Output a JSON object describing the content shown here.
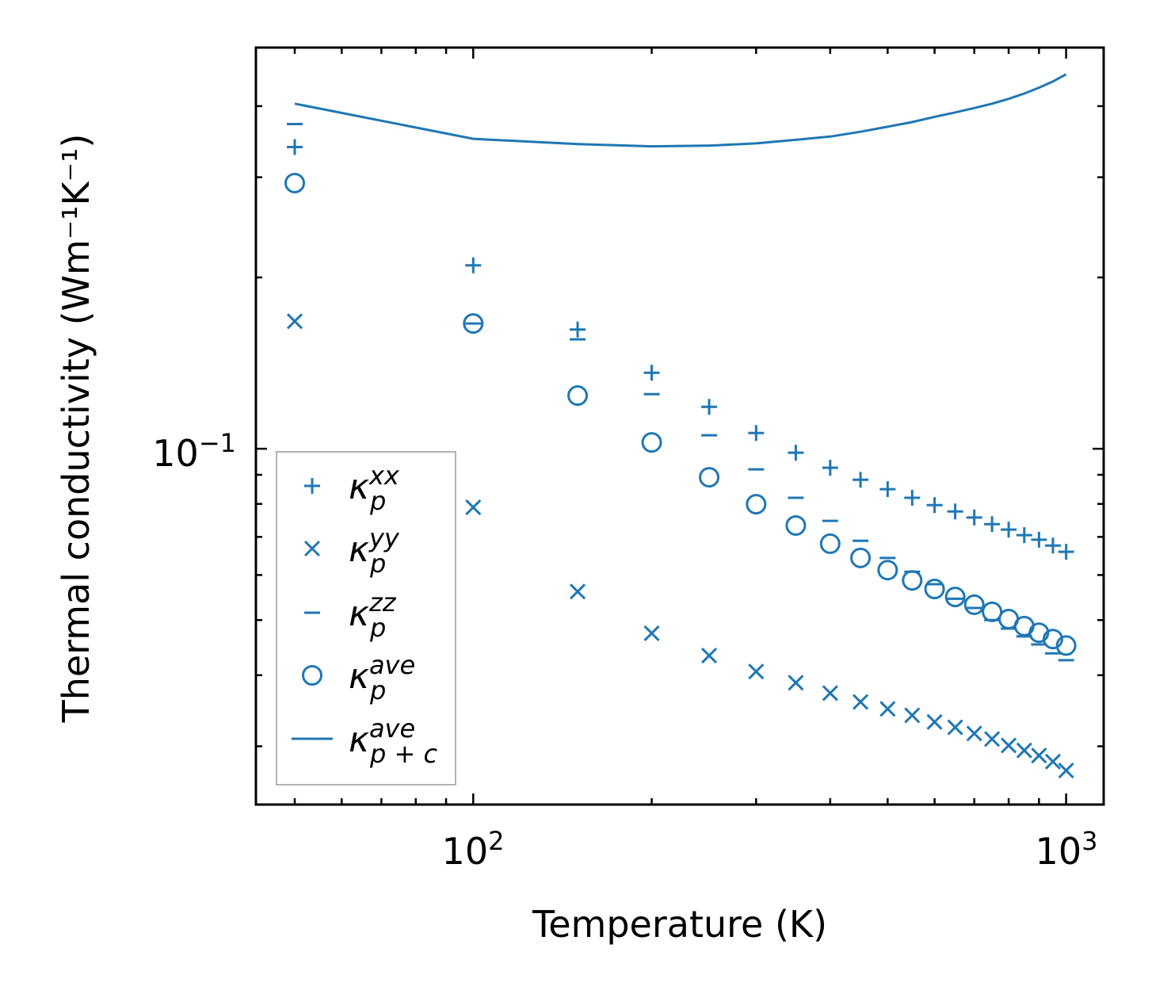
{
  "chart_data": {
    "type": "scatter",
    "title": "",
    "xlabel": "Temperature (K)",
    "ylabel": "Thermal conductivity (Wm⁻¹K⁻¹)",
    "xscale": "log",
    "yscale": "log",
    "xlim": [
      43,
      1157
    ],
    "ylim": [
      0.0237,
      0.507
    ],
    "x_ticks": [
      {
        "value": 100,
        "label_base": "10",
        "label_exp": "2"
      },
      {
        "value": 1000,
        "label_base": "10",
        "label_exp": "3"
      }
    ],
    "y_ticks": [
      {
        "value": 0.1,
        "label_base": "10",
        "label_exp": "−1"
      }
    ],
    "grid": false,
    "legend_position": "lower-left",
    "color": "#1f77b4",
    "x": [
      50,
      100,
      150,
      200,
      250,
      300,
      350,
      400,
      450,
      500,
      550,
      600,
      650,
      700,
      750,
      800,
      850,
      900,
      950,
      1000
    ],
    "series": [
      {
        "name": "kappa_p_xx",
        "symbol": "κ",
        "sub": "p",
        "sup": "xx",
        "marker": "plus",
        "values": [
          0.339,
          0.21,
          0.162,
          0.136,
          0.1185,
          0.1066,
          0.0984,
          0.0926,
          0.0882,
          0.0849,
          0.082,
          0.0796,
          0.0776,
          0.0757,
          0.0737,
          0.0721,
          0.0705,
          0.0692,
          0.0676,
          0.0659
        ]
      },
      {
        "name": "kappa_p_yy",
        "symbol": "κ",
        "sub": "p",
        "sup": "yy",
        "marker": "x",
        "values": [
          0.1675,
          0.0789,
          0.0561,
          0.0474,
          0.0433,
          0.0406,
          0.0388,
          0.0372,
          0.0359,
          0.0349,
          0.034,
          0.0331,
          0.0324,
          0.0316,
          0.0309,
          0.0301,
          0.0295,
          0.0289,
          0.0282,
          0.0272
        ]
      },
      {
        "name": "kappa_p_zz",
        "symbol": "κ",
        "sub": "p",
        "sup": "zz",
        "marker": "hline",
        "values": [
          0.372,
          0.166,
          0.1557,
          0.1247,
          0.1056,
          0.092,
          0.082,
          0.0747,
          0.0689,
          0.0643,
          0.0608,
          0.0578,
          0.0545,
          0.0525,
          0.05,
          0.0483,
          0.0468,
          0.0453,
          0.0437,
          0.0425
        ]
      },
      {
        "name": "kappa_p_ave",
        "symbol": "κ",
        "sub": "p",
        "sup": "ave",
        "marker": "circle",
        "values": [
          0.293,
          0.166,
          0.124,
          0.1026,
          0.0891,
          0.0799,
          0.0733,
          0.0681,
          0.0643,
          0.0612,
          0.0587,
          0.0567,
          0.0549,
          0.0532,
          0.0517,
          0.0502,
          0.0488,
          0.0475,
          0.0463,
          0.0451
        ]
      },
      {
        "name": "kappa_pc_ave",
        "symbol": "κ",
        "sub": "p + c",
        "sup": "ave",
        "marker": "line",
        "values": [
          0.404,
          0.3505,
          0.343,
          0.34,
          0.341,
          0.344,
          0.349,
          0.3537,
          0.3606,
          0.368,
          0.375,
          0.383,
          0.39,
          0.397,
          0.404,
          0.412,
          0.421,
          0.431,
          0.442,
          0.455
        ]
      }
    ]
  }
}
